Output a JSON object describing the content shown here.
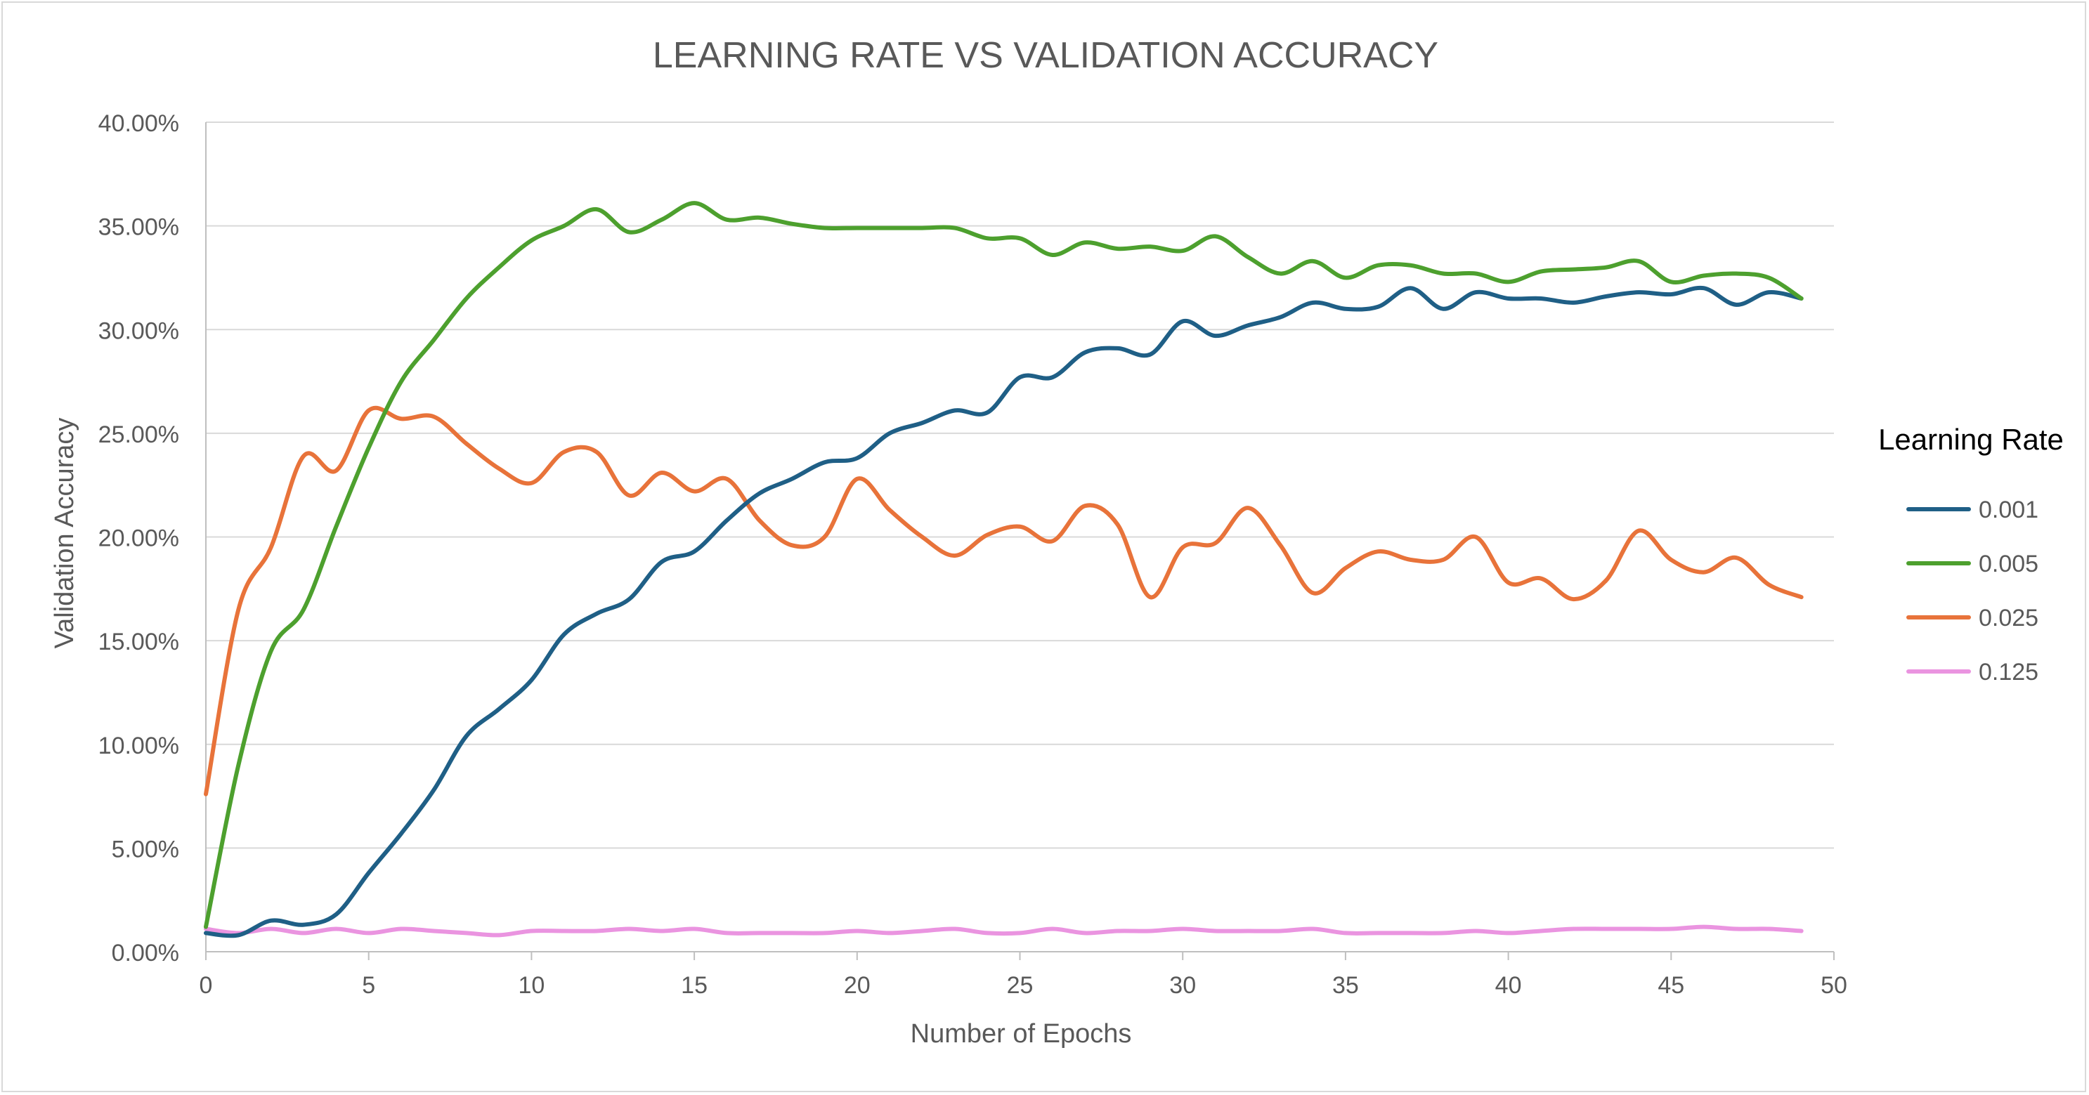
{
  "chart_data": {
    "type": "line",
    "title": "LEARNING RATE VS VALIDATION ACCURACY",
    "xlabel": "Number of Epochs",
    "ylabel": "Validation Accuracy",
    "xlim": [
      0,
      50
    ],
    "ylim": [
      0,
      0.4
    ],
    "x_ticks": [
      0,
      5,
      10,
      15,
      20,
      25,
      30,
      35,
      40,
      45,
      50
    ],
    "y_ticks": [
      0,
      0.05,
      0.1,
      0.15,
      0.2,
      0.25,
      0.3,
      0.35,
      0.4
    ],
    "y_tick_labels": [
      "0.00%",
      "5.00%",
      "10.00%",
      "15.00%",
      "20.00%",
      "25.00%",
      "30.00%",
      "35.00%",
      "40.00%"
    ],
    "x_tick_labels": [
      "0",
      "5",
      "10",
      "15",
      "20",
      "25",
      "30",
      "35",
      "40",
      "45",
      "50"
    ],
    "grid": "horizontal",
    "smooth": true,
    "legend_title": "Learning Rate",
    "legend_position": "right",
    "series": [
      {
        "name": "0.001",
        "color": "#1f5f86",
        "x": [
          0,
          1,
          2,
          3,
          4,
          5,
          6,
          7,
          8,
          9,
          10,
          11,
          12,
          13,
          14,
          15,
          16,
          17,
          18,
          19,
          20,
          21,
          22,
          23,
          24,
          25,
          26,
          27,
          28,
          29,
          30,
          31,
          32,
          33,
          34,
          35,
          36,
          37,
          38,
          39,
          40,
          41,
          42,
          43,
          44,
          45,
          46,
          47,
          48,
          49
        ],
        "values": [
          0.009,
          0.008,
          0.015,
          0.013,
          0.018,
          0.038,
          0.057,
          0.078,
          0.104,
          0.117,
          0.131,
          0.153,
          0.163,
          0.17,
          0.188,
          0.193,
          0.208,
          0.221,
          0.228,
          0.236,
          0.238,
          0.25,
          0.255,
          0.261,
          0.26,
          0.277,
          0.277,
          0.289,
          0.291,
          0.288,
          0.304,
          0.297,
          0.302,
          0.306,
          0.313,
          0.31,
          0.311,
          0.32,
          0.31,
          0.318,
          0.315,
          0.315,
          0.313,
          0.316,
          0.318,
          0.317,
          0.32,
          0.312,
          0.318,
          0.315
        ]
      },
      {
        "name": "0.005",
        "color": "#4da02e",
        "x": [
          0,
          1,
          2,
          3,
          4,
          5,
          6,
          7,
          8,
          9,
          10,
          11,
          12,
          13,
          14,
          15,
          16,
          17,
          18,
          19,
          20,
          21,
          22,
          23,
          24,
          25,
          26,
          27,
          28,
          29,
          30,
          31,
          32,
          33,
          34,
          35,
          36,
          37,
          38,
          39,
          40,
          41,
          42,
          43,
          44,
          45,
          46,
          47,
          48,
          49
        ],
        "values": [
          0.012,
          0.09,
          0.145,
          0.165,
          0.205,
          0.243,
          0.275,
          0.295,
          0.315,
          0.33,
          0.343,
          0.35,
          0.358,
          0.347,
          0.353,
          0.361,
          0.353,
          0.354,
          0.351,
          0.349,
          0.349,
          0.349,
          0.349,
          0.349,
          0.344,
          0.344,
          0.336,
          0.342,
          0.339,
          0.34,
          0.338,
          0.345,
          0.335,
          0.327,
          0.333,
          0.325,
          0.331,
          0.331,
          0.327,
          0.327,
          0.323,
          0.328,
          0.329,
          0.33,
          0.333,
          0.323,
          0.326,
          0.327,
          0.325,
          0.315
        ]
      },
      {
        "name": "0.025",
        "color": "#e8733a",
        "x": [
          0,
          1,
          2,
          3,
          4,
          5,
          6,
          7,
          8,
          9,
          10,
          11,
          12,
          13,
          14,
          15,
          16,
          17,
          18,
          19,
          20,
          21,
          22,
          23,
          24,
          25,
          26,
          27,
          28,
          29,
          30,
          31,
          32,
          33,
          34,
          35,
          36,
          37,
          38,
          39,
          40,
          41,
          42,
          43,
          44,
          45,
          46,
          47,
          48,
          49
        ],
        "values": [
          0.076,
          0.165,
          0.195,
          0.239,
          0.232,
          0.261,
          0.257,
          0.258,
          0.245,
          0.233,
          0.226,
          0.241,
          0.241,
          0.22,
          0.231,
          0.222,
          0.228,
          0.208,
          0.196,
          0.2,
          0.228,
          0.213,
          0.2,
          0.191,
          0.201,
          0.205,
          0.198,
          0.215,
          0.206,
          0.171,
          0.195,
          0.197,
          0.214,
          0.196,
          0.173,
          0.185,
          0.193,
          0.189,
          0.189,
          0.2,
          0.178,
          0.18,
          0.17,
          0.179,
          0.203,
          0.189,
          0.183,
          0.19,
          0.177,
          0.171
        ]
      },
      {
        "name": "0.125",
        "color": "#ea94e0",
        "x": [
          0,
          1,
          2,
          3,
          4,
          5,
          6,
          7,
          8,
          9,
          10,
          11,
          12,
          13,
          14,
          15,
          16,
          17,
          18,
          19,
          20,
          21,
          22,
          23,
          24,
          25,
          26,
          27,
          28,
          29,
          30,
          31,
          32,
          33,
          34,
          35,
          36,
          37,
          38,
          39,
          40,
          41,
          42,
          43,
          44,
          45,
          46,
          47,
          48,
          49
        ],
        "values": [
          0.011,
          0.009,
          0.011,
          0.009,
          0.011,
          0.009,
          0.011,
          0.01,
          0.009,
          0.008,
          0.01,
          0.01,
          0.01,
          0.011,
          0.01,
          0.011,
          0.009,
          0.009,
          0.009,
          0.009,
          0.01,
          0.009,
          0.01,
          0.011,
          0.009,
          0.009,
          0.011,
          0.009,
          0.01,
          0.01,
          0.011,
          0.01,
          0.01,
          0.01,
          0.011,
          0.009,
          0.009,
          0.009,
          0.009,
          0.01,
          0.009,
          0.01,
          0.011,
          0.011,
          0.011,
          0.011,
          0.012,
          0.011,
          0.011,
          0.01
        ]
      }
    ]
  }
}
